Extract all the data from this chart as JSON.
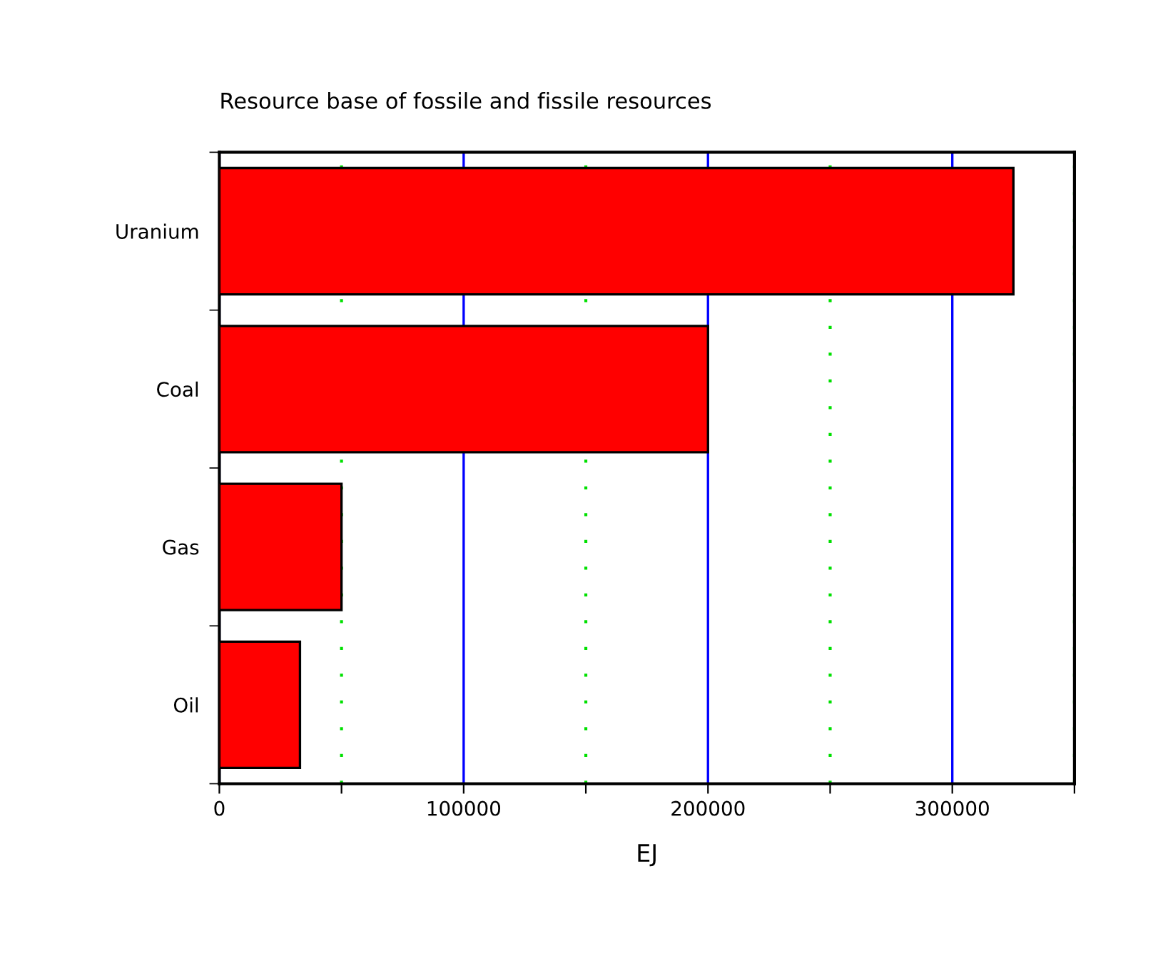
{
  "chart_data": {
    "type": "bar",
    "orientation": "horizontal",
    "title": "Resource base of fossile and fissile resources",
    "xlabel": "EJ",
    "categories": [
      "Uranium",
      "Coal",
      "Gas",
      "Oil"
    ],
    "values": [
      325000,
      200000,
      50000,
      33000
    ],
    "color": "#ff0000",
    "xlim": [
      0,
      350000
    ],
    "xticks": [
      0,
      {
        "value": 50000,
        "label": null
      },
      100000,
      {
        "value": 150000,
        "label": null
      },
      200000,
      {
        "value": 250000,
        "label": null
      },
      300000,
      {
        "value": 350000,
        "label": null
      }
    ],
    "grid": "x"
  }
}
